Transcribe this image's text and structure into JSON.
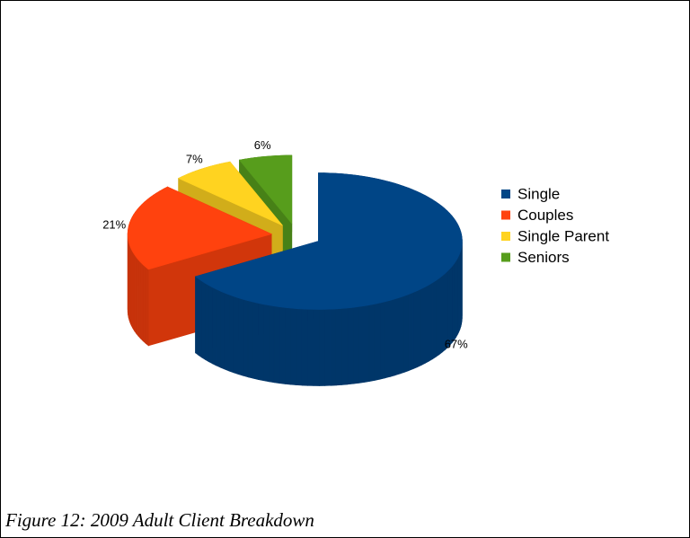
{
  "chart_data": {
    "type": "pie3d",
    "categories": [
      "Single",
      "Couples",
      "Single Parent",
      "Seniors"
    ],
    "values": [
      67,
      21,
      7,
      6
    ],
    "value_labels": [
      "67%",
      "21%",
      "7%",
      "6%"
    ],
    "colors": [
      "#004586",
      "#ff420e",
      "#ffd320",
      "#579d1c"
    ],
    "legend": "right",
    "caption": "Figure 12: 2009 Adult Client Breakdown"
  }
}
